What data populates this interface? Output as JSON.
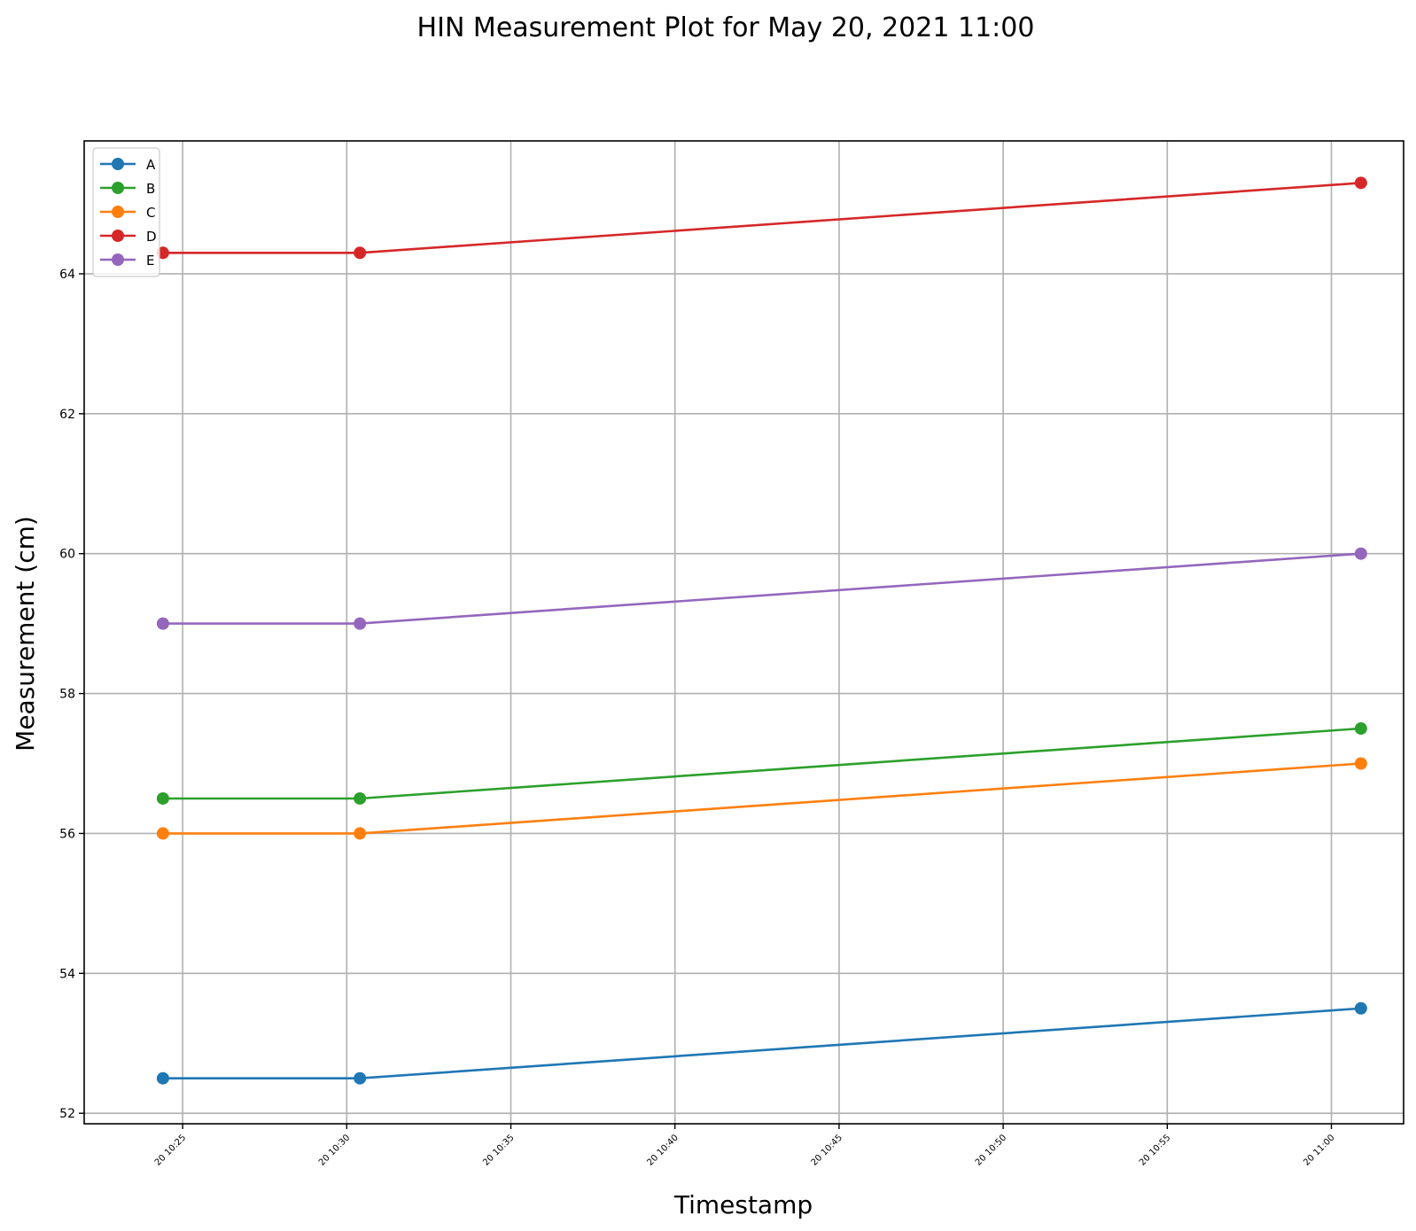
{
  "chart_data": {
    "type": "line",
    "title": "HIN Measurement Plot for May 20, 2021 11:00",
    "xlabel": "Timestamp",
    "ylabel": "Measurement (cm)",
    "x": [
      "2021-05-20 10:24:24",
      "2021-05-20 10:30:24",
      "2021-05-20 11:00:54"
    ],
    "x_ticks": [
      "2021-05-20 10:25",
      "2021-05-20 10:30",
      "2021-05-20 10:35",
      "2021-05-20 10:40",
      "2021-05-20 10:45",
      "2021-05-20 10:50",
      "2021-05-20 10:55",
      "2021-05-20 11:00"
    ],
    "x_tick_labels": [
      "20 10:25",
      "20 10:30",
      "20 10:35",
      "20 10:40",
      "20 10:45",
      "20 10:50",
      "20 10:55",
      "20 11:00"
    ],
    "xlim": [
      "2021-05-20 10:22:00",
      "2021-05-20 11:02:12"
    ],
    "ylim": [
      51.85,
      65.9
    ],
    "y_ticks": [
      52,
      54,
      56,
      58,
      60,
      62,
      64
    ],
    "grid": true,
    "legend_position": "top-left",
    "series": [
      {
        "name": "A",
        "color": "#1f77b4",
        "values": [
          52.5,
          52.5,
          53.5
        ]
      },
      {
        "name": "B",
        "color": "#2ca02c",
        "values": [
          56.5,
          56.5,
          57.5
        ]
      },
      {
        "name": "C",
        "color": "#ff7f0e",
        "values": [
          56.0,
          56.0,
          57.0
        ]
      },
      {
        "name": "D",
        "color": "#d62728",
        "values": [
          64.3,
          64.3,
          65.3
        ]
      },
      {
        "name": "E",
        "color": "#9467bd",
        "values": [
          59.0,
          59.0,
          60.0
        ]
      }
    ]
  }
}
